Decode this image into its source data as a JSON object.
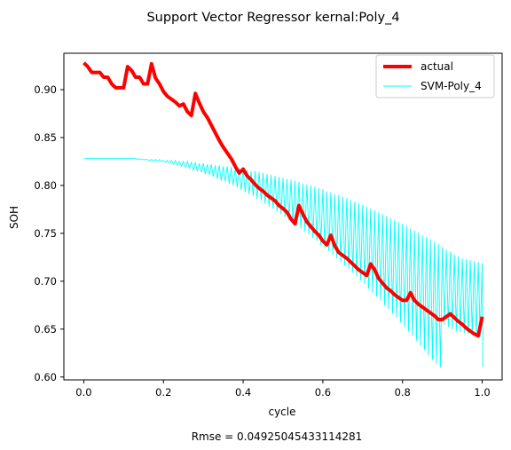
{
  "chart_data": {
    "type": "line",
    "title": "Support Vector Regressor kernal:Poly_4",
    "xlabel": "cycle",
    "ylabel": "SOH",
    "footer": "Rmse = 0.04925045433114281",
    "xlim": [
      -0.05,
      1.05
    ],
    "ylim": [
      0.597,
      0.938
    ],
    "xticks": [
      0.0,
      0.2,
      0.4,
      0.6,
      0.8,
      1.0
    ],
    "xtick_labels": [
      "0.0",
      "0.2",
      "0.4",
      "0.6",
      "0.8",
      "1.0"
    ],
    "yticks": [
      0.6,
      0.65,
      0.7,
      0.75,
      0.8,
      0.85,
      0.9
    ],
    "ytick_labels": [
      "0.60",
      "0.65",
      "0.70",
      "0.75",
      "0.80",
      "0.85",
      "0.90"
    ],
    "grid": false,
    "legend_position": "top-right",
    "series": [
      {
        "name": "actual",
        "color": "#ff0000",
        "x": [
          0.0,
          0.01,
          0.02,
          0.04,
          0.05,
          0.06,
          0.07,
          0.08,
          0.09,
          0.1,
          0.11,
          0.12,
          0.13,
          0.14,
          0.15,
          0.16,
          0.17,
          0.18,
          0.19,
          0.2,
          0.21,
          0.22,
          0.23,
          0.24,
          0.25,
          0.26,
          0.27,
          0.28,
          0.29,
          0.3,
          0.31,
          0.32,
          0.33,
          0.34,
          0.35,
          0.36,
          0.37,
          0.38,
          0.39,
          0.4,
          0.41,
          0.42,
          0.43,
          0.44,
          0.45,
          0.46,
          0.47,
          0.48,
          0.49,
          0.5,
          0.51,
          0.52,
          0.53,
          0.54,
          0.55,
          0.56,
          0.57,
          0.58,
          0.59,
          0.6,
          0.61,
          0.62,
          0.63,
          0.64,
          0.65,
          0.66,
          0.67,
          0.68,
          0.69,
          0.7,
          0.71,
          0.72,
          0.73,
          0.74,
          0.75,
          0.76,
          0.77,
          0.78,
          0.79,
          0.8,
          0.81,
          0.82,
          0.83,
          0.84,
          0.85,
          0.86,
          0.87,
          0.88,
          0.89,
          0.9,
          0.91,
          0.92,
          0.93,
          0.94,
          0.95,
          0.96,
          0.97,
          0.98,
          0.99,
          1.0
        ],
        "values": [
          0.928,
          0.924,
          0.918,
          0.918,
          0.913,
          0.913,
          0.906,
          0.902,
          0.902,
          0.902,
          0.924,
          0.92,
          0.913,
          0.913,
          0.906,
          0.906,
          0.927,
          0.912,
          0.906,
          0.898,
          0.893,
          0.89,
          0.887,
          0.883,
          0.885,
          0.877,
          0.873,
          0.896,
          0.886,
          0.877,
          0.871,
          0.863,
          0.855,
          0.847,
          0.84,
          0.834,
          0.828,
          0.82,
          0.813,
          0.817,
          0.81,
          0.806,
          0.801,
          0.797,
          0.794,
          0.79,
          0.787,
          0.784,
          0.779,
          0.776,
          0.772,
          0.765,
          0.76,
          0.779,
          0.77,
          0.762,
          0.757,
          0.752,
          0.748,
          0.742,
          0.738,
          0.748,
          0.737,
          0.73,
          0.727,
          0.724,
          0.72,
          0.716,
          0.712,
          0.709,
          0.706,
          0.718,
          0.712,
          0.703,
          0.698,
          0.693,
          0.69,
          0.686,
          0.683,
          0.68,
          0.68,
          0.688,
          0.68,
          0.676,
          0.673,
          0.67,
          0.667,
          0.664,
          0.66,
          0.66,
          0.663,
          0.666,
          0.662,
          0.658,
          0.655,
          0.651,
          0.648,
          0.645,
          0.643,
          0.663
        ]
      },
      {
        "name": "SVM-Poly_4",
        "color": "#00ffff",
        "x": [
          0.0,
          0.01,
          0.02,
          0.04,
          0.05,
          0.06,
          0.07,
          0.08,
          0.09,
          0.1,
          0.11,
          0.12,
          0.13,
          0.14,
          0.15,
          0.16,
          0.17,
          0.18,
          0.19,
          0.2,
          0.21,
          0.22,
          0.23,
          0.24,
          0.25,
          0.26,
          0.27,
          0.28,
          0.29,
          0.3,
          0.31,
          0.32,
          0.33,
          0.34,
          0.35,
          0.36,
          0.37,
          0.38,
          0.39,
          0.4,
          0.41,
          0.42,
          0.43,
          0.44,
          0.45,
          0.46,
          0.47,
          0.48,
          0.49,
          0.5,
          0.51,
          0.52,
          0.53,
          0.54,
          0.55,
          0.56,
          0.57,
          0.58,
          0.59,
          0.6,
          0.61,
          0.62,
          0.63,
          0.64,
          0.65,
          0.66,
          0.67,
          0.68,
          0.69,
          0.7,
          0.71,
          0.72,
          0.73,
          0.74,
          0.75,
          0.76,
          0.77,
          0.78,
          0.79,
          0.8,
          0.81,
          0.82,
          0.83,
          0.84,
          0.85,
          0.86,
          0.87,
          0.88,
          0.89,
          0.9,
          0.91,
          0.92,
          0.93,
          0.94,
          0.95,
          0.96,
          0.97,
          0.98,
          0.99,
          1.0
        ],
        "upper": [
          0.828,
          0.828,
          0.828,
          0.828,
          0.828,
          0.828,
          0.828,
          0.828,
          0.828,
          0.828,
          0.828,
          0.828,
          0.828,
          0.828,
          0.827,
          0.827,
          0.827,
          0.827,
          0.827,
          0.826,
          0.826,
          0.826,
          0.826,
          0.825,
          0.825,
          0.825,
          0.824,
          0.824,
          0.823,
          0.823,
          0.822,
          0.822,
          0.821,
          0.821,
          0.82,
          0.82,
          0.819,
          0.818,
          0.818,
          0.817,
          0.816,
          0.815,
          0.815,
          0.814,
          0.813,
          0.812,
          0.811,
          0.81,
          0.809,
          0.808,
          0.807,
          0.806,
          0.805,
          0.804,
          0.802,
          0.801,
          0.8,
          0.799,
          0.797,
          0.796,
          0.794,
          0.793,
          0.791,
          0.79,
          0.788,
          0.787,
          0.785,
          0.783,
          0.782,
          0.78,
          0.778,
          0.776,
          0.774,
          0.772,
          0.77,
          0.768,
          0.766,
          0.764,
          0.762,
          0.76,
          0.758,
          0.755,
          0.753,
          0.751,
          0.748,
          0.746,
          0.744,
          0.741,
          0.739,
          0.736,
          0.733,
          0.731,
          0.728,
          0.726,
          0.724,
          0.723,
          0.722,
          0.721,
          0.72,
          0.719
        ],
        "lower": [
          0.828,
          0.828,
          0.828,
          0.828,
          0.828,
          0.828,
          0.828,
          0.828,
          0.828,
          0.828,
          0.828,
          0.828,
          0.827,
          0.827,
          0.827,
          0.826,
          0.826,
          0.825,
          0.825,
          0.824,
          0.823,
          0.822,
          0.821,
          0.82,
          0.819,
          0.818,
          0.816,
          0.815,
          0.814,
          0.812,
          0.811,
          0.809,
          0.807,
          0.805,
          0.804,
          0.802,
          0.8,
          0.798,
          0.795,
          0.793,
          0.791,
          0.789,
          0.786,
          0.784,
          0.781,
          0.778,
          0.776,
          0.773,
          0.77,
          0.767,
          0.764,
          0.761,
          0.758,
          0.755,
          0.752,
          0.749,
          0.745,
          0.742,
          0.738,
          0.735,
          0.731,
          0.728,
          0.724,
          0.72,
          0.716,
          0.713,
          0.709,
          0.705,
          0.701,
          0.697,
          0.692,
          0.688,
          0.684,
          0.68,
          0.675,
          0.671,
          0.666,
          0.662,
          0.657,
          0.652,
          0.648,
          0.643,
          0.638,
          0.633,
          0.628,
          0.623,
          0.618,
          0.614,
          0.61,
          0.655,
          0.652,
          0.65,
          0.648,
          0.647,
          0.646,
          0.645,
          0.644,
          0.643,
          0.642,
          0.61
        ]
      }
    ]
  }
}
